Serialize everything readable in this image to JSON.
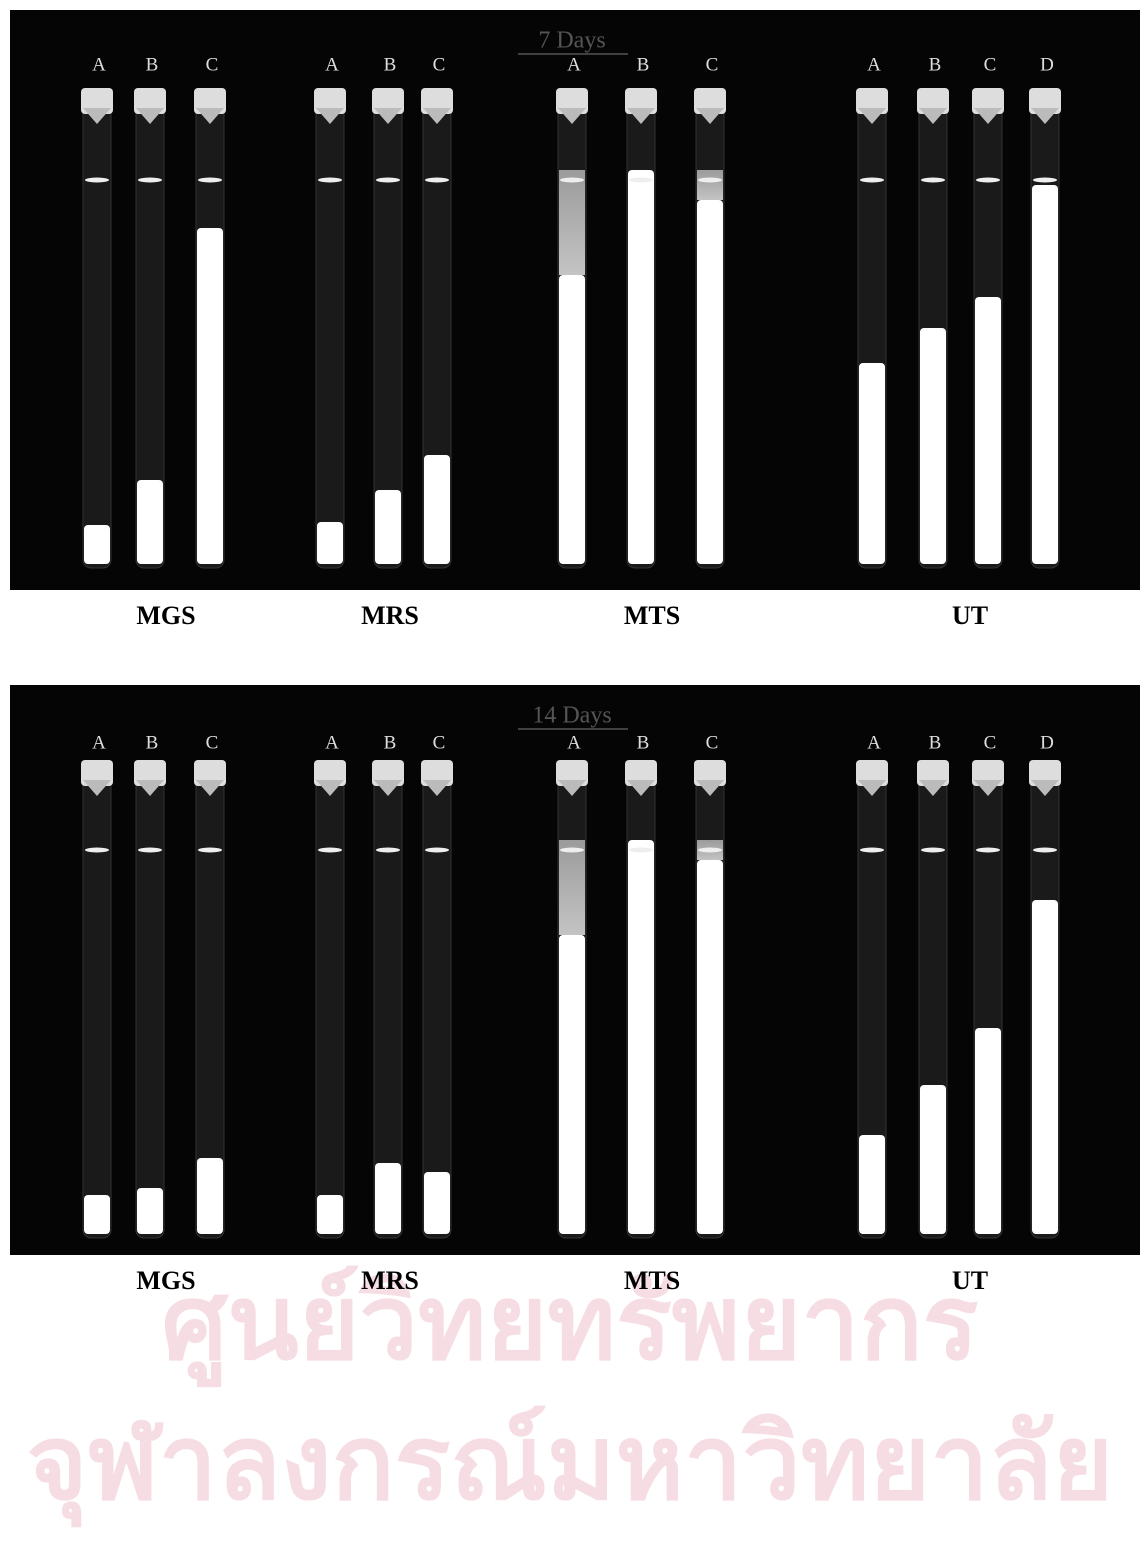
{
  "panels": [
    {
      "title": "7 Days",
      "groups": [
        {
          "name": "MGS",
          "tubes": [
            "A",
            "B",
            "C"
          ]
        },
        {
          "name": "MRS",
          "tubes": [
            "A",
            "B",
            "C"
          ]
        },
        {
          "name": "MTS",
          "tubes": [
            "A",
            "B",
            "C"
          ]
        },
        {
          "name": "UT",
          "tubes": [
            "A",
            "B",
            "C",
            "D"
          ]
        }
      ]
    },
    {
      "title": "14 Days",
      "groups": [
        {
          "name": "MGS",
          "tubes": [
            "A",
            "B",
            "C"
          ]
        },
        {
          "name": "MRS",
          "tubes": [
            "A",
            "B",
            "C"
          ]
        },
        {
          "name": "MTS",
          "tubes": [
            "A",
            "B",
            "C"
          ]
        },
        {
          "name": "UT",
          "tubes": [
            "A",
            "B",
            "C",
            "D"
          ]
        }
      ]
    }
  ],
  "watermark": [
    "ศูนย์วิทยทรัพยากร",
    "จุฬาลงกรณ์มหาวิทยาลัย"
  ]
}
